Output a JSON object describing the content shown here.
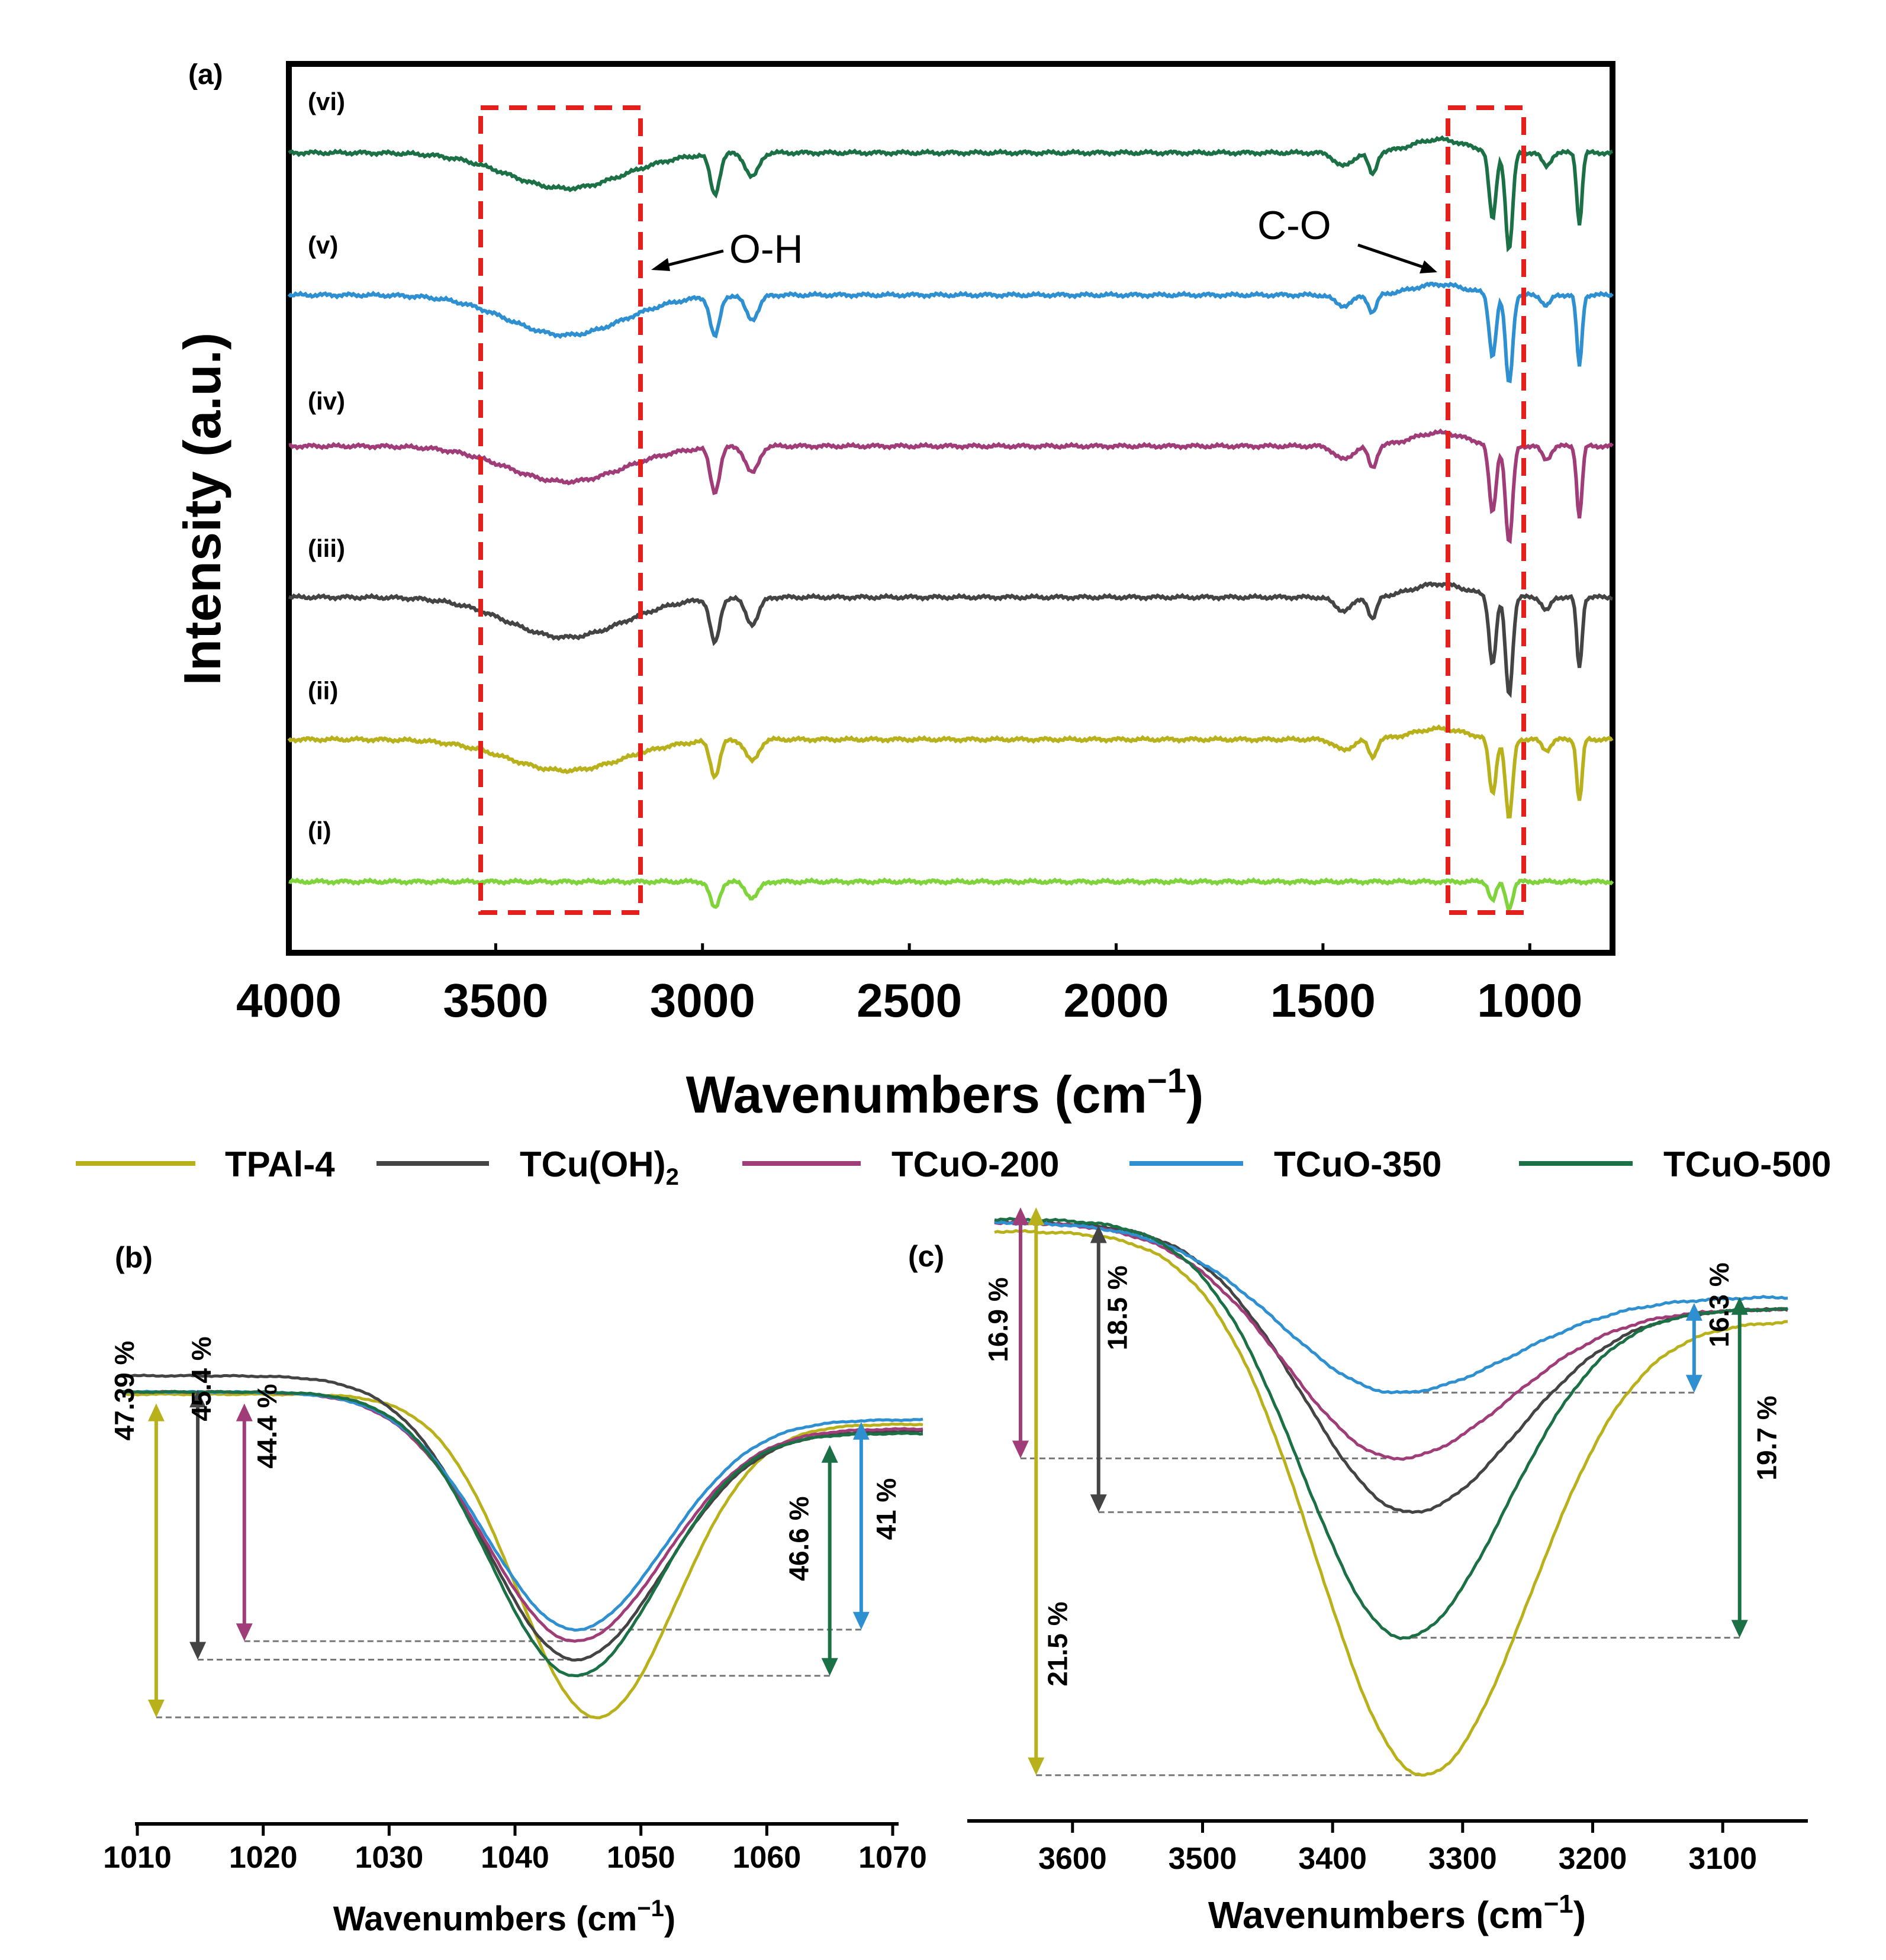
{
  "chart_data": [
    {
      "panel_label": "(a)",
      "type": "line",
      "xlabel_main": "Wavenumbers (cm",
      "xlabel_sup": "−1",
      "xlabel_close": ")",
      "ylabel": "Intensity (a.u.)",
      "xlim": [
        4000,
        800
      ],
      "x_ticks": [
        "4000",
        "3500",
        "3000",
        "2500",
        "2000",
        "1500",
        "1000"
      ],
      "x_tick_values": [
        4000,
        3500,
        3000,
        2500,
        2000,
        1500,
        1000
      ],
      "annotations": [
        {
          "text": "O-H",
          "region_x": [
            3530,
            3150
          ]
        },
        {
          "text": "C-O",
          "region_x": [
            1180,
            1040
          ]
        }
      ],
      "series": [
        {
          "name": "(i)",
          "color": "#7fd43b",
          "baseline": 0.08,
          "oh": 0.0,
          "ch": 0.03,
          "co": 0.03,
          "sharp": 0.0,
          "small": 0.0
        },
        {
          "name": "(ii)",
          "color": "#b9b11c",
          "baseline": 0.24,
          "oh": 0.035,
          "ch": 0.04,
          "co": 0.09,
          "sharp": 0.07,
          "small": 0.02
        },
        {
          "name": "(iii)",
          "color": "#444444",
          "baseline": 0.4,
          "oh": 0.045,
          "ch": 0.05,
          "co": 0.11,
          "sharp": 0.08,
          "small": 0.025
        },
        {
          "name": "(iv)",
          "color": "#a03c78",
          "baseline": 0.57,
          "oh": 0.04,
          "ch": 0.05,
          "co": 0.11,
          "sharp": 0.08,
          "small": 0.025
        },
        {
          "name": "(v)",
          "color": "#2e8fd1",
          "baseline": 0.74,
          "oh": 0.045,
          "ch": 0.045,
          "co": 0.1,
          "sharp": 0.08,
          "small": 0.02
        },
        {
          "name": "(vi)",
          "color": "#1b7045",
          "baseline": 0.9,
          "oh": 0.04,
          "ch": 0.045,
          "co": 0.11,
          "sharp": 0.08,
          "small": 0.025
        }
      ]
    },
    {
      "panel_label": "(b)",
      "type": "line",
      "xlabel": "Wavenumbers (cm",
      "xlabel_sup": "−1",
      "xlabel_close": ")",
      "xlim": [
        1010,
        1070
      ],
      "x_ticks": [
        "1010",
        "1020",
        "1030",
        "1040",
        "1050",
        "1060",
        "1070"
      ],
      "x_tick_values": [
        1010,
        1020,
        1030,
        1040,
        1050,
        1060,
        1070
      ],
      "series": [
        {
          "name": "TPAl-4",
          "color": "#b9b11c",
          "min_x": 1046.5,
          "min_y": 0.1,
          "left_y": 0.8,
          "right_y": 0.735,
          "w": 8.5
        },
        {
          "name": "TCu(OH)2",
          "color": "#444444",
          "min_x": 1044.8,
          "min_y": 0.225,
          "left_y": 0.84,
          "right_y": 0.72,
          "w": 9.5
        },
        {
          "name": "TCuO-200",
          "color": "#a03c78",
          "min_x": 1044.8,
          "min_y": 0.265,
          "left_y": 0.805,
          "right_y": 0.725,
          "w": 9.5
        },
        {
          "name": "TCuO-350",
          "color": "#2e8fd1",
          "min_x": 1044.8,
          "min_y": 0.29,
          "left_y": 0.805,
          "right_y": 0.745,
          "w": 9.5
        },
        {
          "name": "TCuO-500",
          "color": "#1b7045",
          "min_x": 1044.8,
          "min_y": 0.19,
          "left_y": 0.805,
          "right_y": 0.715,
          "w": 9.0
        }
      ],
      "annotations": [
        {
          "text": "47.39 %",
          "color": "#b9b11c",
          "x": 1011.5
        },
        {
          "text": "45.4 %",
          "color": "#444444",
          "x": 1014.8
        },
        {
          "text": "44.4 %",
          "color": "#a03c78",
          "x": 1018.5
        },
        {
          "text": "46.6 %",
          "color": "#1b7045",
          "x": 1065
        },
        {
          "text": "41 %",
          "color": "#2e8fd1",
          "x": 1067.5
        }
      ]
    },
    {
      "panel_label": "(c)",
      "type": "line",
      "xlabel": "Wavenumbers (cm",
      "xlabel_sup": "−1",
      "xlabel_close": ")",
      "xlim": [
        3660,
        3050
      ],
      "x_ticks": [
        "3600",
        "3500",
        "3400",
        "3300",
        "3200",
        "3100"
      ],
      "x_tick_values": [
        3600,
        3500,
        3400,
        3300,
        3200,
        3100
      ],
      "series": [
        {
          "name": "TPAl-4",
          "color": "#b9b11c",
          "min_x": 3330,
          "min_y": 0.03,
          "left_y": 0.94,
          "right_y": 0.79,
          "w": 110
        },
        {
          "name": "TCu(OH)2",
          "color": "#444444",
          "min_x": 3340,
          "min_y": 0.47,
          "left_y": 0.955,
          "right_y": 0.81,
          "w": 110
        },
        {
          "name": "TCuO-200",
          "color": "#a03c78",
          "min_x": 3350,
          "min_y": 0.56,
          "left_y": 0.955,
          "right_y": 0.81,
          "w": 115
        },
        {
          "name": "TCuO-350",
          "color": "#2e8fd1",
          "min_x": 3350,
          "min_y": 0.67,
          "left_y": 0.955,
          "right_y": 0.83,
          "w": 120
        },
        {
          "name": "TCuO-500",
          "color": "#1b7045",
          "min_x": 3345,
          "min_y": 0.26,
          "left_y": 0.96,
          "right_y": 0.81,
          "w": 105
        }
      ],
      "annotations": [
        {
          "text": "16.9 %",
          "color": "#a03c78",
          "x": 3640
        },
        {
          "text": "21.5 %",
          "color": "#b9b11c",
          "x": 3628
        },
        {
          "text": "18.5 %",
          "color": "#444444",
          "x": 3580
        },
        {
          "text": "16.3 %",
          "color": "#2e8fd1",
          "x": 3122
        },
        {
          "text": "19.7 %",
          "color": "#1b7045",
          "x": 3087
        }
      ]
    }
  ],
  "legend": [
    {
      "label": "TPAl-4",
      "sub": "",
      "color": "#b9b11c"
    },
    {
      "label": "TCu(OH)",
      "sub": "2",
      "color": "#444444"
    },
    {
      "label": "TCuO-200",
      "sub": "",
      "color": "#a03c78"
    },
    {
      "label": "TCuO-350",
      "sub": "",
      "color": "#2e8fd1"
    },
    {
      "label": "TCuO-500",
      "sub": "",
      "color": "#1b7045"
    }
  ]
}
